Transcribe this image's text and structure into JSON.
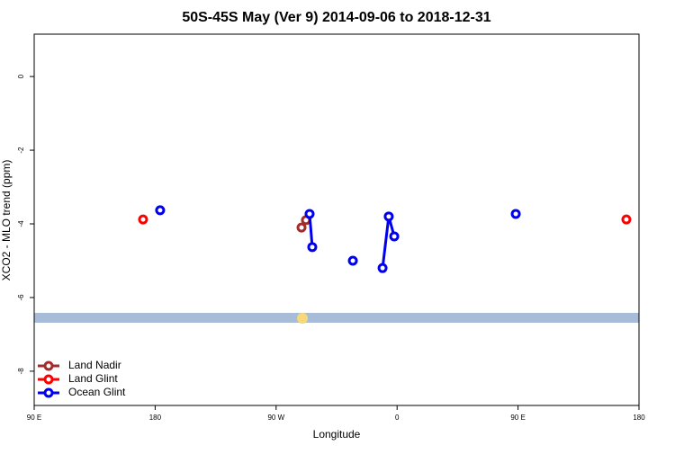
{
  "chart_data": {
    "type": "line",
    "title": "50S-45S May (Ver 9)   2014-09-06 to 2018-12-31",
    "x_label": "Longitude",
    "y_label": "XCO2 - MLO trend (ppm)",
    "xlim": [
      90,
      540
    ],
    "ylim": [
      -8.93,
      1.15
    ],
    "xticks": [
      {
        "value": 90,
        "label": "90 E"
      },
      180,
      {
        "value": 270,
        "label": "90 W"
      },
      {
        "value": 360,
        "label": "0"
      },
      {
        "value": 450,
        "label": "90 E"
      },
      {
        "value": 540,
        "label": "180"
      }
    ],
    "yticks": [
      0,
      -2,
      -4,
      -6,
      -8
    ],
    "legend": "bottom-left",
    "series": [
      {
        "name": "Land Nadir",
        "color": "#a52a2a",
        "x": [
          288.9,
          292.2
        ],
        "values": [
          -4.1,
          -3.9
        ]
      },
      {
        "name": "Land Glint",
        "color": "#ff0000",
        "x": [
          171.0,
          null,
          530.6
        ],
        "values": [
          -3.88,
          null,
          -3.88
        ]
      },
      {
        "name": "Ocean Glint",
        "color": "#0000ee",
        "x": [
          183.7,
          null,
          294.9,
          296.9,
          null,
          327.1,
          null,
          349.2,
          353.8,
          357.9,
          null,
          448.3
        ],
        "values": [
          -3.63,
          null,
          -3.73,
          -4.63,
          null,
          -5.0,
          null,
          -5.2,
          -3.8,
          -4.34,
          null,
          -3.73
        ]
      }
    ]
  }
}
